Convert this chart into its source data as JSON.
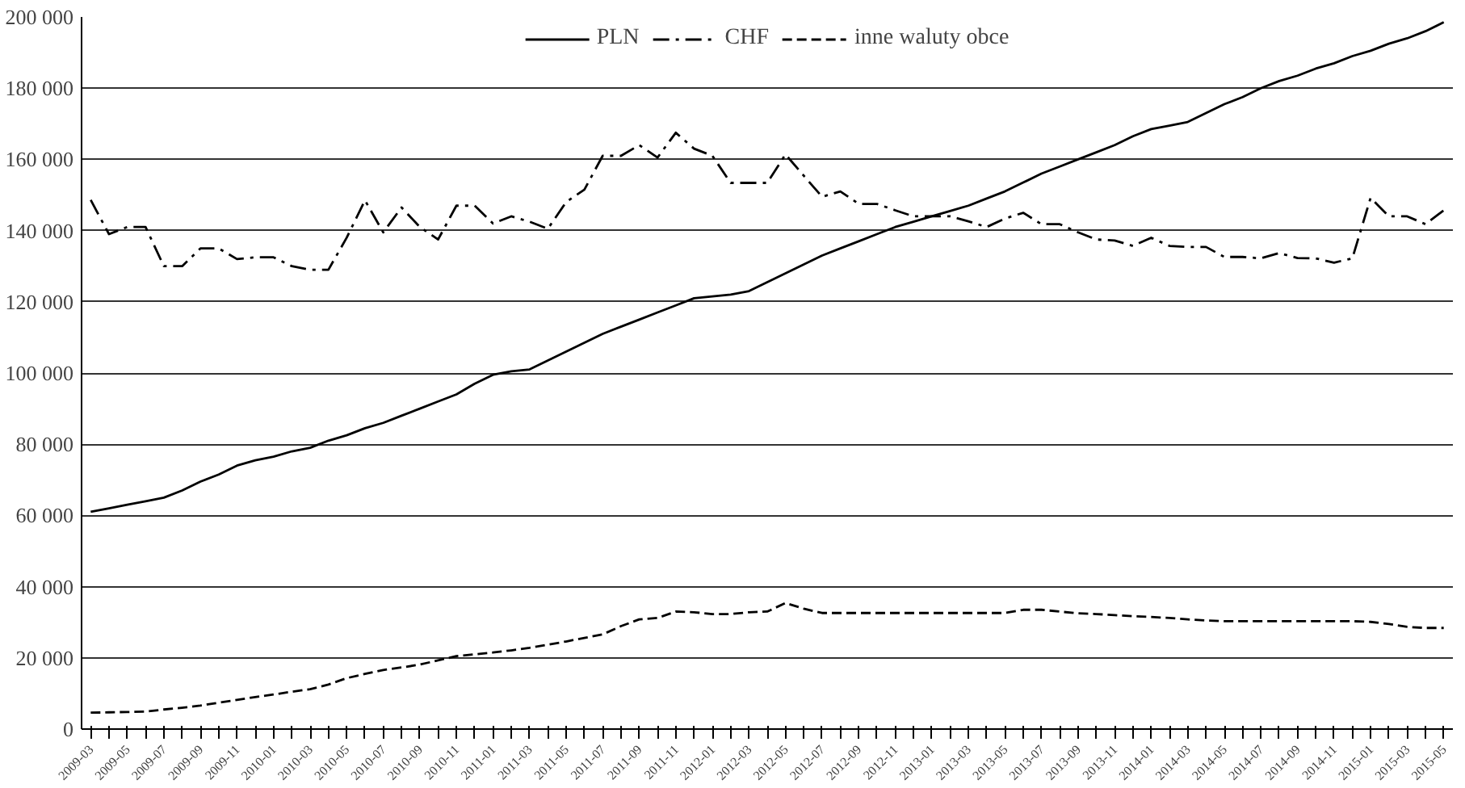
{
  "chart_data": {
    "type": "line",
    "categories": [
      "2009-03",
      null,
      "2009-05",
      null,
      "2009-07",
      null,
      "2009-09",
      null,
      "2009-11",
      null,
      "2010-01",
      null,
      "2010-03",
      null,
      "2010-05",
      null,
      "2010-07",
      null,
      "2010-09",
      null,
      "2010-11",
      null,
      "2011-01",
      null,
      "2011-03",
      null,
      "2011-05",
      null,
      "2011-07",
      null,
      "2011-09",
      null,
      "2011-11",
      null,
      "2012-01",
      null,
      "2012-03",
      null,
      "2012-05",
      null,
      "2012-07",
      null,
      "2012-09",
      null,
      "2012-11",
      null,
      "2013-01",
      null,
      "2013-03",
      null,
      "2013-05",
      null,
      "2013-07",
      null,
      "2013-09",
      null,
      "2013-11",
      null,
      "2014-01",
      null,
      "2014-03",
      null,
      "2014-05",
      null,
      "2014-07",
      null,
      "2014-09",
      null,
      "2014-11",
      null,
      "2015-01",
      null,
      "2015-03",
      null,
      "2015-05"
    ],
    "series": [
      {
        "name": "PLN",
        "color": "#000000",
        "line_style": "solid",
        "values": [
          61000,
          62000,
          63000,
          64000,
          65000,
          67000,
          69500,
          71500,
          74000,
          75500,
          76500,
          78000,
          79000,
          81000,
          82500,
          84500,
          86000,
          88000,
          90000,
          92000,
          94000,
          97000,
          99500,
          100500,
          101000,
          103500,
          106000,
          108500,
          111000,
          113000,
          115000,
          117000,
          119000,
          121000,
          121500,
          122000,
          123000,
          125500,
          128000,
          130500,
          133000,
          135000,
          137000,
          139000,
          141000,
          142500,
          144000,
          145500,
          147000,
          149000,
          151000,
          153500,
          156000,
          158000,
          160000,
          162000,
          164000,
          166500,
          168500,
          169500,
          170500,
          173000,
          175500,
          177500,
          180000,
          182000,
          183500,
          185500,
          187000,
          189000,
          190500,
          192500,
          194000,
          196000,
          198500
        ]
      },
      {
        "name": "CHF",
        "color": "#000000",
        "line_style": "dashdot",
        "values": [
          148600,
          139000,
          141000,
          141000,
          130000,
          130000,
          135000,
          135000,
          132000,
          132500,
          132500,
          130000,
          129000,
          129000,
          138000,
          148500,
          139500,
          146500,
          141000,
          137500,
          147000,
          147000,
          142000,
          144000,
          142500,
          140500,
          148000,
          151500,
          161000,
          161000,
          164000,
          160500,
          167500,
          163000,
          161000,
          153400,
          153400,
          153400,
          161400,
          155400,
          149500,
          151000,
          147500,
          147500,
          145700,
          144000,
          144000,
          144000,
          142600,
          141000,
          143400,
          145000,
          141800,
          141800,
          139500,
          137500,
          137200,
          135700,
          138000,
          135700,
          135400,
          135400,
          132600,
          132600,
          132200,
          133700,
          132300,
          132200,
          131000,
          132200,
          149200,
          144000,
          144000,
          141800,
          145700
        ]
      },
      {
        "name": "inne waluty obce",
        "color": "#000000",
        "line_style": "dashed",
        "values": [
          4600,
          4700,
          4800,
          4900,
          5500,
          6000,
          6600,
          7400,
          8200,
          9000,
          9700,
          10500,
          11200,
          12500,
          14300,
          15500,
          16600,
          17300,
          18100,
          19300,
          20500,
          21000,
          21500,
          22100,
          22800,
          23700,
          24600,
          25600,
          26600,
          28900,
          30800,
          31200,
          33000,
          32800,
          32300,
          32300,
          32800,
          33000,
          35400,
          33800,
          32600,
          32600,
          32600,
          32600,
          32600,
          32600,
          32600,
          32600,
          32600,
          32600,
          32600,
          33500,
          33500,
          33000,
          32500,
          32300,
          32000,
          31700,
          31500,
          31200,
          30800,
          30500,
          30300,
          30300,
          30300,
          30300,
          30300,
          30300,
          30300,
          30300,
          30100,
          29500,
          28700,
          28400,
          28400
        ]
      }
    ],
    "ylim": [
      0,
      200000
    ],
    "yticks": [
      {
        "value": 0,
        "label": "0"
      },
      {
        "value": 20000,
        "label": "20 000"
      },
      {
        "value": 40000,
        "label": "40 000"
      },
      {
        "value": 60000,
        "label": "60 000"
      },
      {
        "value": 80000,
        "label": "80 000"
      },
      {
        "value": 100000,
        "label": "100 000"
      },
      {
        "value": 120000,
        "label": "120 000"
      },
      {
        "value": 140000,
        "label": "140 000"
      },
      {
        "value": 160000,
        "label": "160 000"
      },
      {
        "value": 180000,
        "label": "180 000"
      },
      {
        "value": 200000,
        "label": "200 000"
      }
    ],
    "grid": "y",
    "legend": "top"
  }
}
